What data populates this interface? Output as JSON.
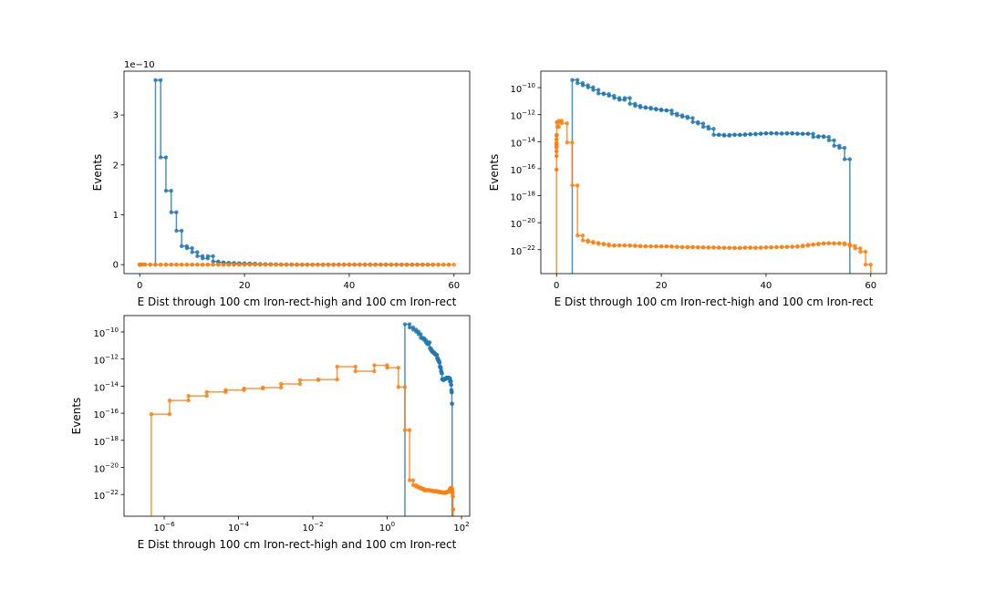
{
  "chart_data": [
    {
      "type": "line",
      "drawstyle": "steps",
      "xscale": "linear",
      "yscale": "linear",
      "xlabel": "E Dist through 100 cm Iron-rect-high and 100 cm Iron-rect",
      "ylabel": "Events",
      "y_offset_label": "1e−10",
      "xlim": [
        -3,
        63
      ],
      "ylim": [
        -1.8e-11,
        3.88e-10
      ],
      "xticks": [
        0,
        20,
        40,
        60
      ],
      "xtick_labels": [
        "0",
        "20",
        "40",
        "60"
      ],
      "yticks": [
        0,
        1e-10,
        2e-10,
        3e-10
      ],
      "ytick_labels": [
        "0",
        "1",
        "2",
        "3"
      ],
      "series_ref": "shared"
    },
    {
      "type": "line",
      "drawstyle": "steps",
      "xscale": "linear",
      "yscale": "log",
      "xlabel": "E Dist through 100 cm Iron-rect-high and 100 cm Iron-rect",
      "ylabel": "Events",
      "xlim": [
        -3,
        63
      ],
      "ylim": [
        1.7e-24,
        1.66e-09
      ],
      "xticks": [
        0,
        20,
        40,
        60
      ],
      "xtick_labels": [
        "0",
        "20",
        "40",
        "60"
      ],
      "yticks": [
        1e-10,
        1e-12,
        1e-14,
        1e-16,
        1e-18,
        1e-20,
        1e-22
      ],
      "ytick_exponents": [
        "−10",
        "−12",
        "−14",
        "−16",
        "−18",
        "−20",
        "−22"
      ],
      "series_ref": "shared"
    },
    {
      "type": "line",
      "drawstyle": "steps",
      "xscale": "log",
      "yscale": "log",
      "xlabel": "E Dist through 100 cm Iron-rect-high and 100 cm Iron-rect",
      "ylabel": "Events",
      "xlim": [
        8.3e-08,
        166
      ],
      "ylim": [
        2.5e-24,
        1.62e-09
      ],
      "xticks": [
        1e-06,
        0.0001,
        0.01,
        1,
        100
      ],
      "xtick_exponents": [
        "−6",
        "−4",
        "−2",
        "0",
        "2"
      ],
      "yticks": [
        1e-10,
        1e-12,
        1e-14,
        1e-16,
        1e-18,
        1e-20,
        1e-22
      ],
      "ytick_exponents": [
        "−10",
        "−12",
        "−14",
        "−16",
        "−18",
        "−20",
        "−22"
      ],
      "series_ref": "shared"
    }
  ],
  "series": [
    {
      "color": "#1f77b4",
      "edges": [
        3,
        4,
        5,
        6,
        7,
        8,
        9,
        10,
        11,
        12,
        13,
        14,
        15,
        16,
        17,
        18,
        19,
        20,
        21,
        22,
        23,
        24,
        25,
        26,
        27,
        28,
        29,
        30,
        31,
        32,
        33,
        34,
        35,
        36,
        37,
        38,
        39,
        40,
        41,
        42,
        43,
        44,
        45,
        46,
        47,
        48,
        49,
        50,
        51,
        52,
        53,
        54,
        55,
        56
      ],
      "values": [
        3.7e-10,
        2.15e-10,
        1.48e-10,
        1.05e-10,
        6.8e-11,
        3.7e-11,
        3.3e-11,
        2.5e-11,
        1.7e-11,
        1.25e-11,
        1.7e-11,
        6.3e-12,
        4.5e-12,
        3.5e-12,
        3.2e-12,
        2.7e-12,
        2.4e-12,
        2.1e-12,
        2e-12,
        1.17e-12,
        8.9e-13,
        7.1e-13,
        5.6e-13,
        2.8e-13,
        2.2e-13,
        1.26e-13,
        8.9e-14,
        3.2e-14,
        3.2e-14,
        2.8e-14,
        3.2e-14,
        3.2e-14,
        3.2e-14,
        3.5e-14,
        3.5e-14,
        3.8e-14,
        4e-14,
        4.2e-14,
        4.2e-14,
        4e-14,
        4e-14,
        4.2e-14,
        4e-14,
        3.8e-14,
        3.8e-14,
        3.8e-14,
        2.2e-14,
        2.5e-14,
        2.2e-14,
        1.26e-14,
        5e-15,
        3.5e-15,
        5e-16
      ]
    },
    {
      "color": "#ff7f0e",
      "edges": [
        4.5e-07,
        1.4e-06,
        4.5e-06,
        1.4e-05,
        4.5e-05,
        0.00014,
        0.00045,
        0.0014,
        0.0045,
        0.014,
        0.045,
        0.14,
        0.45,
        1,
        2,
        3,
        4,
        5,
        6,
        7,
        8,
        9,
        10,
        11,
        12,
        13,
        14,
        15,
        16,
        17,
        18,
        19,
        20,
        21,
        22,
        23,
        24,
        25,
        26,
        27,
        28,
        29,
        30,
        31,
        32,
        33,
        34,
        35,
        36,
        37,
        38,
        39,
        40,
        41,
        42,
        43,
        44,
        45,
        46,
        47,
        48,
        49,
        50,
        51,
        52,
        53,
        54,
        55,
        56,
        57,
        58,
        59,
        60
      ],
      "values": [
        8.5e-17,
        8.7e-16,
        1.9e-15,
        3.7e-15,
        5.1e-15,
        6.6e-15,
        7.8e-15,
        1.45e-14,
        2.8e-14,
        3.1e-14,
        2.75e-13,
        1.26e-13,
        3.5e-13,
        2.3e-13,
        8.5e-15,
        5.75e-18,
        1.12e-21,
        4.9e-22,
        3.8e-22,
        3.2e-22,
        2.75e-22,
        2.5e-22,
        2e-22,
        2.1e-22,
        2.1e-22,
        2.1e-22,
        2e-22,
        1.9e-22,
        1.8e-22,
        1.78e-22,
        1.74e-22,
        1.74e-22,
        1.74e-22,
        1.74e-22,
        1.66e-22,
        1.58e-22,
        1.51e-22,
        1.58e-22,
        1.51e-22,
        1.51e-22,
        1.45e-22,
        1.45e-22,
        1.45e-22,
        1.38e-22,
        1.38e-22,
        1.38e-22,
        1.32e-22,
        1.38e-22,
        1.45e-22,
        1.38e-22,
        1.38e-22,
        1.45e-22,
        1.51e-22,
        1.51e-22,
        1.58e-22,
        1.58e-22,
        1.66e-22,
        1.66e-22,
        1.8e-22,
        2e-22,
        2.3e-22,
        2.5e-22,
        2.8e-22,
        3e-22,
        3e-22,
        2.9e-22,
        3e-22,
        2.5e-22,
        1.9e-22,
        1.26e-22,
        7.1e-23,
        7.9e-24
      ]
    }
  ]
}
